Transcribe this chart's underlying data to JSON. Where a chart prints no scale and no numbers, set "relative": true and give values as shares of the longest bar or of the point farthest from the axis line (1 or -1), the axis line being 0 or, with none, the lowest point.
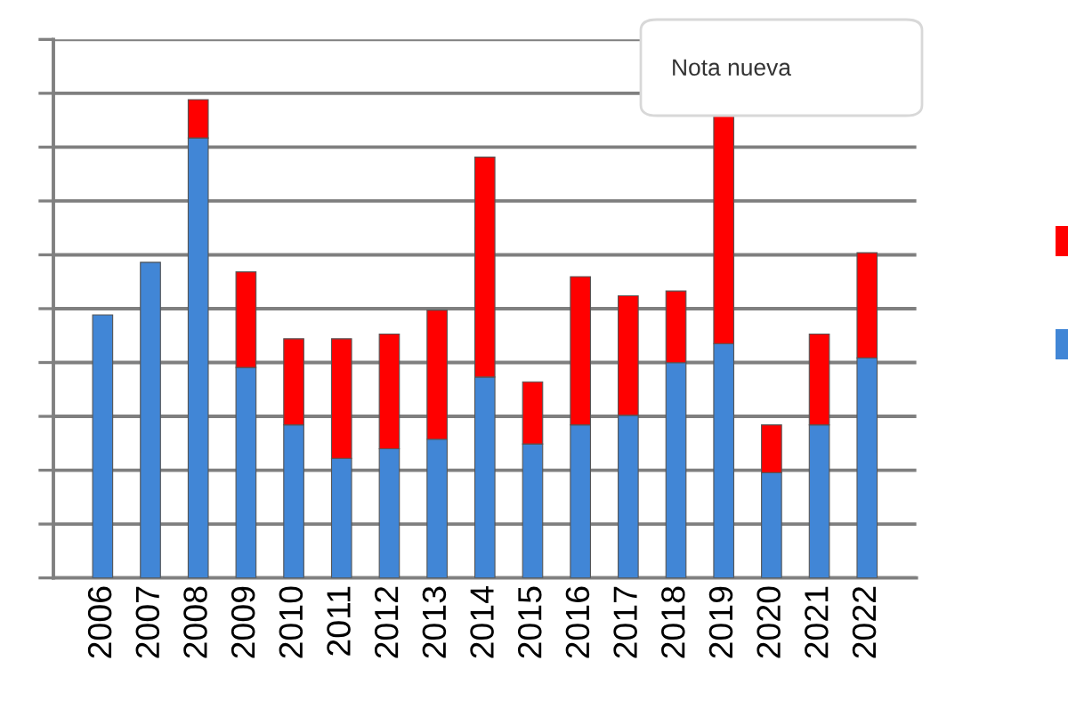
{
  "chart_data": {
    "type": "bar",
    "stacked": true,
    "relative": true,
    "categories": [
      "2006",
      "2007",
      "2008",
      "2009",
      "2010",
      "2011",
      "2012",
      "2013",
      "2014",
      "2015",
      "2016",
      "2017",
      "2018",
      "2019",
      "2020",
      "2021",
      "2022"
    ],
    "series": [
      {
        "color": "#4186d6",
        "values": [
          0.55,
          0.66,
          0.92,
          0.44,
          0.32,
          0.25,
          0.27,
          0.29,
          0.42,
          0.28,
          0.32,
          0.34,
          0.45,
          0.49,
          0.22,
          0.32,
          0.46
        ]
      },
      {
        "color": "#ff0000",
        "values": [
          null,
          null,
          0.08,
          0.2,
          0.18,
          0.25,
          0.24,
          0.27,
          0.46,
          0.13,
          0.31,
          0.25,
          0.15,
          0.48,
          0.1,
          0.19,
          0.22
        ]
      }
    ],
    "grid": "y",
    "tick_labels": "x",
    "annotations": [
      "Nota nueva"
    ]
  }
}
